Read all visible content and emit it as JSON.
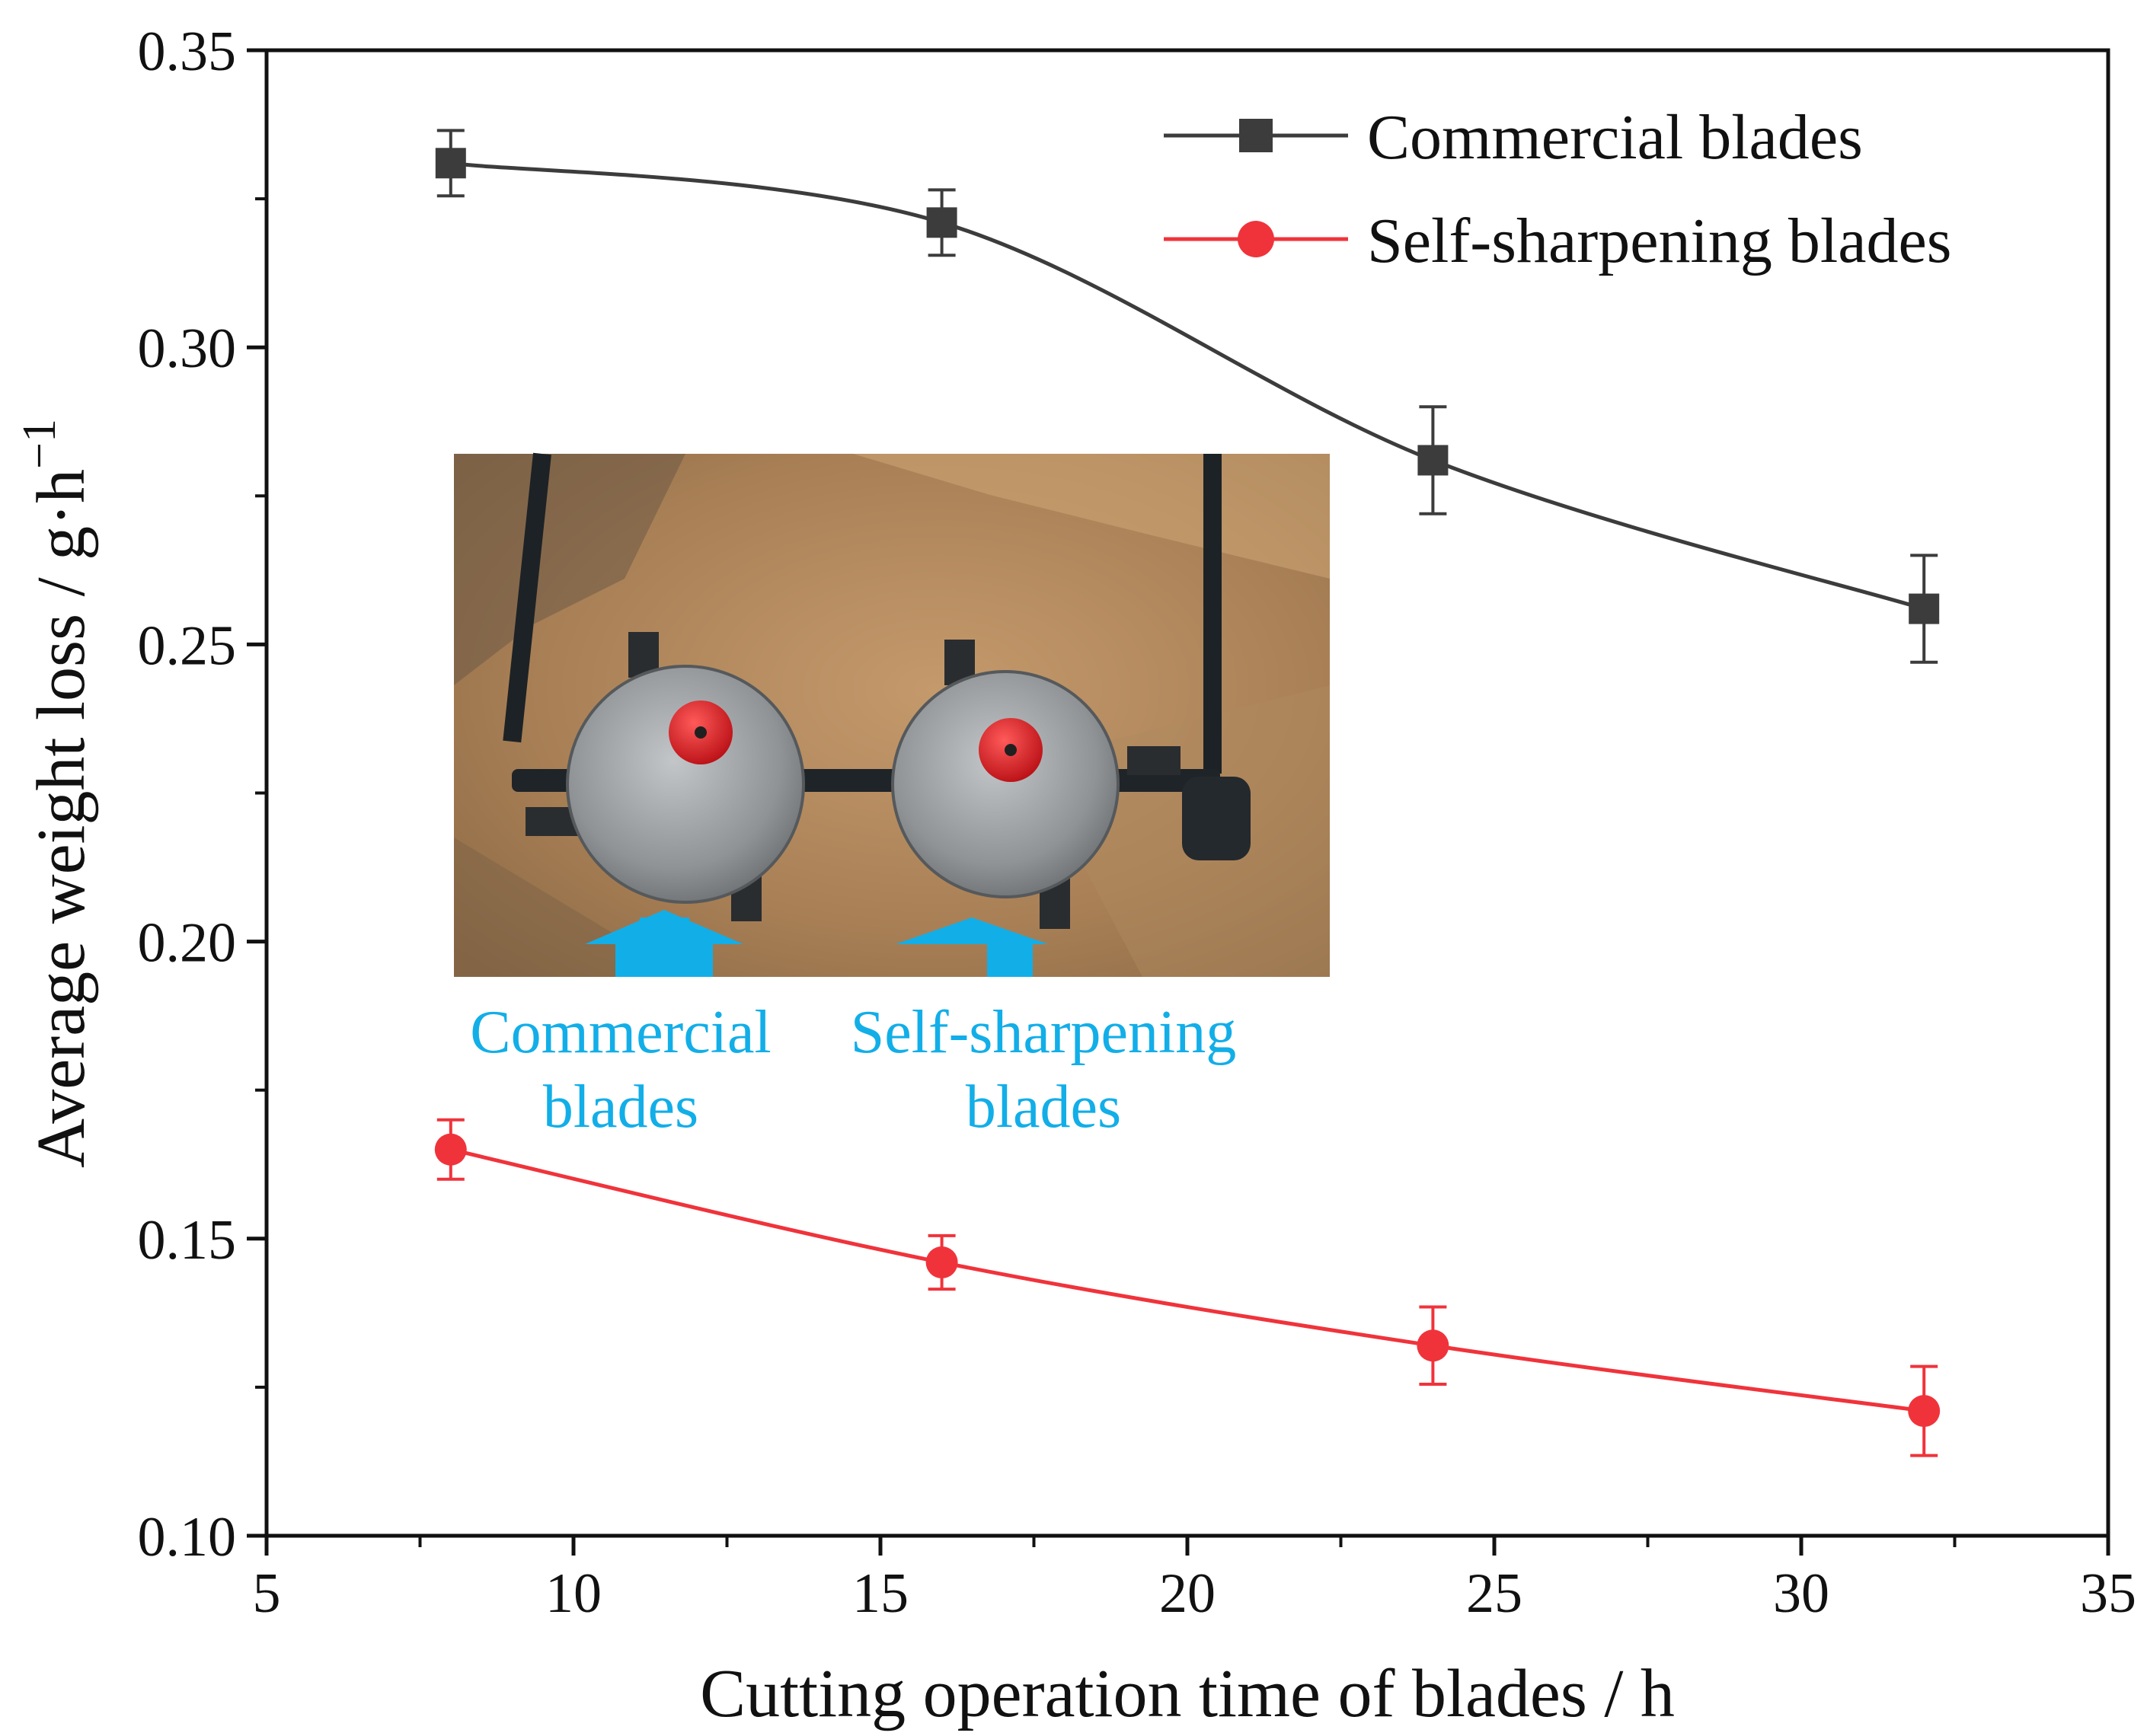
{
  "chart_data": {
    "type": "line",
    "xlabel": "Cutting operation time of blades / h",
    "ylabel": "Average weight loss / g·h",
    "ylabel_superscript": "−1",
    "xlim": [
      5,
      35
    ],
    "ylim": [
      0.1,
      0.35
    ],
    "x_ticks": [
      "5",
      "10",
      "15",
      "20",
      "25",
      "30",
      "35"
    ],
    "y_ticks": [
      "0.10",
      "0.15",
      "0.20",
      "0.25",
      "0.30",
      "0.35"
    ],
    "grid": false,
    "legend_position": "top-right",
    "series": [
      {
        "name": "Commercial blades",
        "marker": "square",
        "color": "#3c3c3c",
        "x": [
          8,
          16,
          24,
          32
        ],
        "y": [
          0.331,
          0.321,
          0.281,
          0.256
        ],
        "error": [
          0.0055,
          0.0055,
          0.009,
          0.009
        ]
      },
      {
        "name": "Self-sharpening blades",
        "marker": "circle",
        "color": "#f0333b",
        "x": [
          8,
          16,
          24,
          32
        ],
        "y": [
          0.165,
          0.146,
          0.132,
          0.121
        ],
        "error": [
          0.005,
          0.0045,
          0.0065,
          0.0075
        ]
      }
    ],
    "inset_photo": {
      "labels": [
        {
          "lines": [
            "Commercial",
            "blades"
          ]
        },
        {
          "lines": [
            "Self-sharpening",
            "blades"
          ]
        }
      ],
      "label_color": "#12aee8"
    }
  }
}
